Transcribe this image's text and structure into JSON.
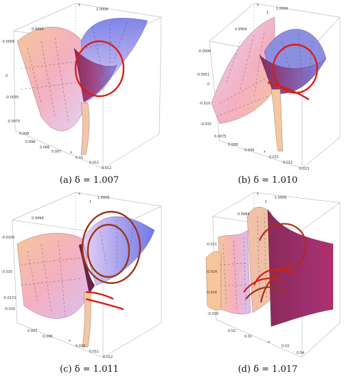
{
  "figure": {
    "panels": [
      {
        "label": "(a)",
        "caption": "δ = 1.007",
        "axis_ticks": {
          "top": [
            "Y",
            "1.0006"
          ],
          "left": [
            "-0.0006",
            "0.9994",
            "0",
            "-0.0035",
            "-0.0075",
            "0.008"
          ],
          "bottom": [
            "0.998",
            "0.006",
            "0.007",
            "x",
            "0.01",
            "0.011",
            "0.012"
          ]
        }
      },
      {
        "label": "(b)",
        "caption": "δ = 1.010",
        "axis_ticks": {
          "top": [
            "Y",
            "1.0006",
            "1"
          ],
          "left": [
            "-0.0006",
            "0.9994",
            "-0.0051",
            "0",
            "-0.010",
            "-0.015",
            "0.0075"
          ],
          "bottom": [
            "0.008",
            "0.009",
            "x",
            "0.011",
            "0.012",
            "0.013"
          ]
        }
      },
      {
        "label": "(c)",
        "caption": "δ = 1.011",
        "axis_ticks": {
          "top": [
            "Y",
            "1.0006",
            "1"
          ],
          "left": [
            "0.9994",
            "-0.0106",
            "-0.015",
            "-0.0172",
            "-0.016"
          ],
          "bottom": [
            "0.007",
            "0.008",
            "x",
            "0.010",
            "0.011",
            "0.012"
          ]
        }
      },
      {
        "label": "(d)",
        "caption": "δ = 1.017",
        "axis_ticks": {
          "top": [
            "Y",
            "1.0006",
            "1",
            "0.9994"
          ],
          "left": [
            "-0.011",
            "-0.014",
            "-0.016",
            "-0.018"
          ],
          "bottom": [
            "0.02",
            "0.01",
            "x",
            "0.03",
            "0.04"
          ]
        }
      }
    ],
    "colors": {
      "surface_pink": "#f4b0c0",
      "surface_peach": "#f6c69a",
      "surface_blue": "#7f86e8",
      "surface_violet": "#e7d0f4",
      "surface_maroon": "#8a2a5a",
      "curve_red": "#dd1a14",
      "curve_brown": "#9a3418",
      "box_line": "#bdbdbd"
    }
  }
}
